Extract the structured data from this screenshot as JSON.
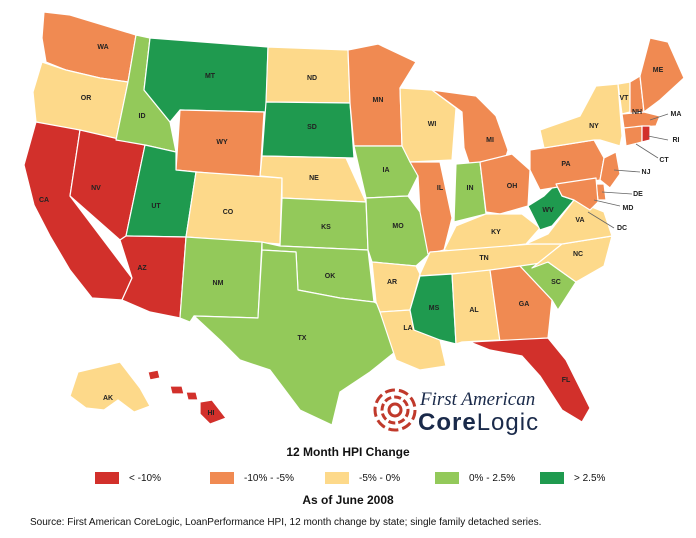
{
  "categories": [
    {
      "id": "lt-10",
      "label": "< -10%",
      "color": "#d2302b"
    },
    {
      "id": "m10-m5",
      "label": "-10% - -5%",
      "color": "#f08a52"
    },
    {
      "id": "m5-0",
      "label": "-5% - 0%",
      "color": "#fdd98a"
    },
    {
      "id": "0-2_5",
      "label": "0% - 2.5%",
      "color": "#93c95a"
    },
    {
      "id": "gt2_5",
      "label": "> 2.5%",
      "color": "#1f9a4f"
    }
  ],
  "states": {
    "WA": "m10-m5",
    "OR": "m5-0",
    "CA": "lt-10",
    "NV": "lt-10",
    "ID": "0-2_5",
    "MT": "gt2_5",
    "WY": "m10-m5",
    "UT": "gt2_5",
    "AZ": "lt-10",
    "CO": "m5-0",
    "NM": "0-2_5",
    "ND": "m5-0",
    "SD": "gt2_5",
    "NE": "m5-0",
    "KS": "0-2_5",
    "OK": "0-2_5",
    "TX": "0-2_5",
    "MN": "m10-m5",
    "IA": "0-2_5",
    "MO": "0-2_5",
    "AR": "m5-0",
    "LA": "m5-0",
    "WI": "m5-0",
    "IL": "m10-m5",
    "MS": "gt2_5",
    "MI": "m10-m5",
    "IN": "0-2_5",
    "OH": "m10-m5",
    "KY": "m5-0",
    "TN": "m5-0",
    "AL": "m5-0",
    "GA": "m10-m5",
    "FL": "lt-10",
    "SC": "0-2_5",
    "NC": "m5-0",
    "VA": "m5-0",
    "WV": "gt2_5",
    "PA": "m10-m5",
    "NY": "m5-0",
    "VT": "m5-0",
    "NH": "m10-m5",
    "ME": "m10-m5",
    "MA": "m10-m5",
    "RI": "lt-10",
    "CT": "m10-m5",
    "NJ": "m10-m5",
    "DE": "m10-m5",
    "MD": "m10-m5",
    "AK": "m5-0",
    "HI": "lt-10"
  },
  "logo": {
    "line1": "First American",
    "line2_bold": "Core",
    "line2_rest": "Logic"
  },
  "legend_title": "12 Month HPI Change",
  "date_label": "As of June 2008",
  "source": "Source: First American CoreLogic, LoanPerformance HPI, 12 month change by state; single family detached series."
}
